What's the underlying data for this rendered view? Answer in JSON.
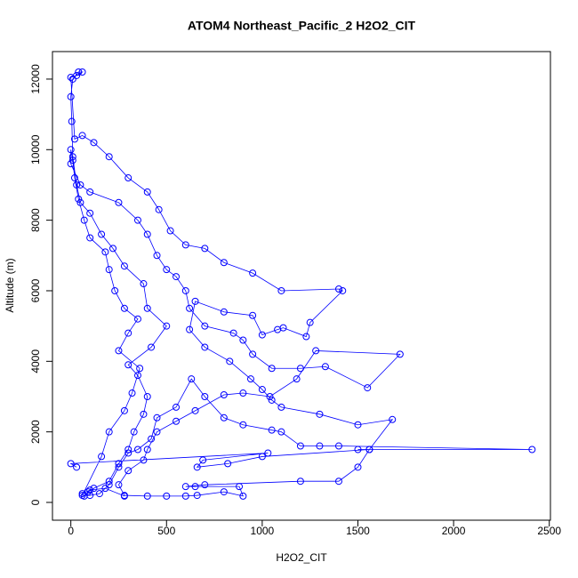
{
  "chart_data": {
    "type": "line",
    "title": "ATOM4 Northeast_Pacific_2 H2O2_CIT",
    "xlabel": "H2O2_CIT",
    "ylabel": "Altitude (m)",
    "color": "#0000ff",
    "xlim": [
      -96,
      2506
    ],
    "ylim": [
      -504,
      12780
    ],
    "xticks": [
      0,
      500,
      1000,
      1500,
      2000,
      2500
    ],
    "yticks": [
      0,
      2000,
      4000,
      6000,
      8000,
      10000,
      12000
    ],
    "x": [
      280,
      180,
      100,
      60,
      70,
      90,
      120,
      200,
      250,
      300,
      330,
      380,
      400,
      350,
      300,
      420,
      500,
      400,
      380,
      280,
      220,
      160,
      100,
      50,
      30,
      10,
      5,
      0,
      10,
      40,
      60,
      30,
      0,
      20,
      60,
      120,
      200,
      300,
      400,
      460,
      520,
      600,
      700,
      800,
      950,
      1100,
      1400,
      1420,
      1250,
      1230,
      1110,
      1080,
      1000,
      950,
      800,
      650,
      620,
      700,
      830,
      940,
      1000,
      1050,
      1100,
      1300,
      1500,
      1680,
      1560,
      1500,
      2410,
      1400,
      1300,
      1200,
      1100,
      1050,
      900,
      800,
      700,
      630,
      550,
      450,
      420,
      350,
      300,
      250,
      200,
      150,
      100,
      60,
      160,
      200,
      280,
      320,
      360,
      250,
      300,
      350,
      280,
      230,
      200,
      180,
      100,
      70,
      40,
      20,
      10,
      0,
      0,
      50,
      100,
      250,
      350,
      400,
      450,
      500,
      550,
      600,
      620,
      700,
      850,
      900,
      950,
      1050,
      1200,
      1330,
      1550,
      1720,
      1280,
      1180,
      1040,
      900,
      800,
      650,
      550,
      450,
      400,
      380,
      300,
      250,
      280,
      400,
      500,
      600,
      660,
      800,
      900,
      880,
      650,
      600,
      700,
      1200,
      1400,
      1500,
      1560,
      1000,
      820,
      660,
      690,
      1030,
      0,
      30
    ],
    "values": [
      180,
      400,
      350,
      250,
      180,
      300,
      400,
      600,
      1100,
      1500,
      2000,
      2500,
      3000,
      3600,
      3900,
      4400,
      5000,
      5500,
      6200,
      6700,
      7200,
      7600,
      8200,
      8500,
      9000,
      9800,
      10800,
      11500,
      12000,
      12200,
      12200,
      12100,
      12050,
      10300,
      10400,
      10200,
      9800,
      9200,
      8800,
      8300,
      7700,
      7300,
      7200,
      6800,
      6500,
      6000,
      6050,
      6000,
      5100,
      4700,
      4950,
      4900,
      4750,
      5300,
      5400,
      5700,
      4900,
      4400,
      4000,
      3500,
      3200,
      2900,
      2700,
      2500,
      2200,
      2350,
      1500,
      1500,
      1500,
      1600,
      1600,
      1600,
      2000,
      2050,
      2200,
      2400,
      3000,
      3500,
      2700,
      2400,
      1800,
      1500,
      1400,
      1000,
      500,
      250,
      200,
      200,
      1300,
      2000,
      2600,
      3100,
      3800,
      4300,
      4800,
      5200,
      5500,
      6000,
      6600,
      7100,
      7500,
      8000,
      8600,
      9200,
      9700,
      10000,
      9600,
      9000,
      8800,
      8500,
      8000,
      7600,
      7000,
      6600,
      6400,
      6000,
      5500,
      5000,
      4800,
      4600,
      4200,
      3800,
      3800,
      3850,
      3250,
      4200,
      4300,
      3500,
      3000,
      3100,
      3050,
      2600,
      2300,
      2000,
      1500,
      1200,
      900,
      500,
      200,
      180,
      180,
      180,
      200,
      300,
      180,
      450,
      450,
      450,
      500,
      600,
      600,
      1000,
      1500,
      1300,
      1100,
      1000,
      1200,
      1400,
      1100,
      1000
    ]
  }
}
